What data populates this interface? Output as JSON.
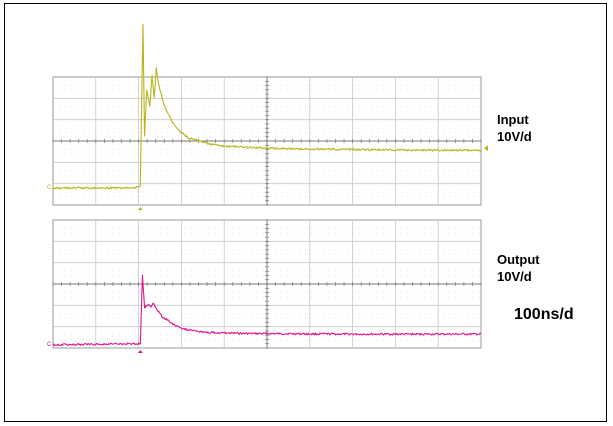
{
  "chart_data": [
    {
      "type": "line",
      "series": [
        {
          "name": "Input",
          "scale": "10V/d",
          "color": "#B9B51B",
          "x": [
            -164,
            -10,
            0,
            5,
            8,
            12,
            18,
            22,
            26,
            30,
            34,
            38,
            44,
            52,
            60,
            75,
            90,
            110,
            130,
            160,
            200,
            260,
            320,
            400,
            480,
            560,
            640
          ],
          "y": [
            -2.2,
            -2.2,
            -2.1,
            5.5,
            0.2,
            2.4,
            1.6,
            3.1,
            2.0,
            3.4,
            2.7,
            2.3,
            1.7,
            1.3,
            0.9,
            0.45,
            0.15,
            0.0,
            -0.15,
            -0.25,
            -0.3,
            -0.35,
            -0.38,
            -0.4,
            -0.42,
            -0.43,
            -0.44
          ]
        }
      ],
      "x_unit": "ns",
      "x_range": [
        -164,
        640
      ],
      "y_range": [
        -3,
        3
      ],
      "divisions": {
        "x": 10,
        "y": 6
      },
      "grid": true,
      "channel_marker": "C",
      "trigger_level_marker": "right edge"
    },
    {
      "type": "line",
      "series": [
        {
          "name": "Output",
          "scale": "10V/d",
          "color": "#E0148E",
          "x": [
            -164,
            -10,
            0,
            4,
            8,
            12,
            16,
            20,
            24,
            30,
            36,
            44,
            52,
            60,
            75,
            90,
            110,
            130,
            160,
            200,
            260,
            320,
            400,
            480,
            560,
            640
          ],
          "y": [
            -2.85,
            -2.8,
            -2.8,
            0.4,
            -1.1,
            -1.0,
            -0.95,
            -1.05,
            -0.9,
            -1.15,
            -1.35,
            -1.6,
            -1.7,
            -1.85,
            -2.05,
            -2.15,
            -2.22,
            -2.27,
            -2.3,
            -2.32,
            -2.33,
            -2.34,
            -2.35,
            -2.35,
            -2.35,
            -2.35
          ]
        }
      ],
      "x_unit": "ns",
      "x_range": [
        -164,
        640
      ],
      "y_range": [
        -3,
        3
      ],
      "divisions": {
        "x": 10,
        "y": 6
      },
      "grid": true,
      "channel_marker": "C"
    }
  ],
  "labels": {
    "input": {
      "name": "Input",
      "scale": "10V/d"
    },
    "output": {
      "name": "Output",
      "scale": "10V/d"
    },
    "timebase": "100ns/d"
  },
  "colors": {
    "grid": "#9a9a9a",
    "frame": "#000000"
  }
}
